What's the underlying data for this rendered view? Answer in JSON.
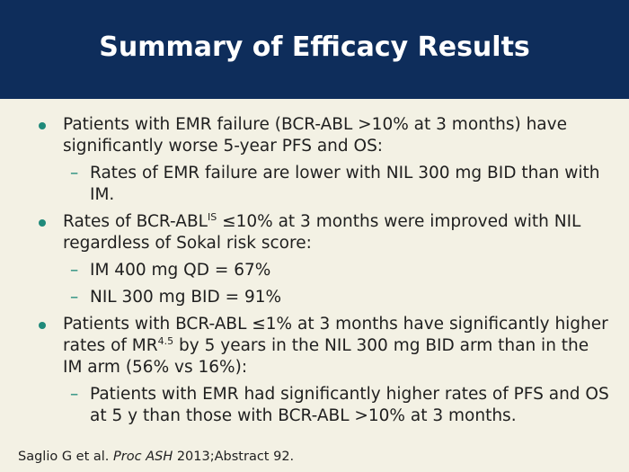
{
  "title": "Summary of Efficacy Results",
  "bullets": {
    "b1": "Patients with EMR failure (BCR-ABL >10% at 3 months) have significantly worse 5-year PFS and OS:",
    "b1_sub1": "Rates of EMR failure are lower with NIL 300 mg BID than with IM.",
    "b2_pre": "Rates of BCR-ABL",
    "b2_sup": "IS",
    "b2_post": " ≤10% at 3 months were improved with NIL regardless of Sokal risk score:",
    "b2_sub1": "IM 400 mg QD = 67%",
    "b2_sub2": "NIL 300 mg BID = 91%",
    "b3_pre": "Patients with BCR-ABL ≤1% at 3 months have significantly higher rates of MR",
    "b3_sup": "4.5",
    "b3_post": " by 5 years in the NIL 300 mg BID arm than in the IM arm (56% vs 16%):",
    "b3_sub1": "Patients with EMR had significantly higher rates of PFS and OS at 5 y than those with BCR-ABL >10% at 3 months."
  },
  "dash": "–",
  "footer": {
    "pre": "Saglio G et al. ",
    "journal": "Proc ASH",
    "post": " 2013;Abstract 92."
  },
  "colors": {
    "header_bg": "#0e2d5b",
    "bullet": "#1f8a7a",
    "background": "#f3f1e4"
  }
}
